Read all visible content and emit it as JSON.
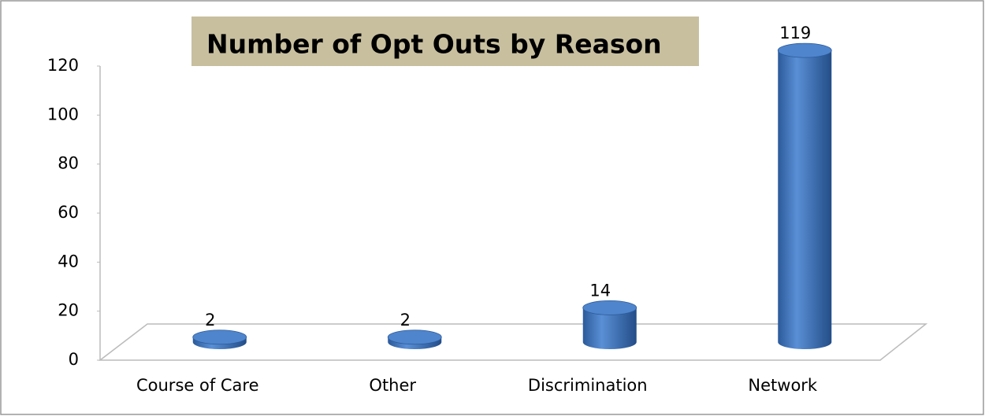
{
  "chart_data": {
    "type": "bar",
    "title": "Number of Opt Outs by Reason",
    "categories": [
      "Course of Care",
      "Other",
      "Discrimination",
      "Network"
    ],
    "values": [
      2,
      2,
      14,
      119
    ],
    "color": "#3f72b8",
    "ylim": [
      0,
      120
    ],
    "yticks": [
      0,
      20,
      40,
      60,
      80,
      100,
      120
    ],
    "grid": false
  }
}
